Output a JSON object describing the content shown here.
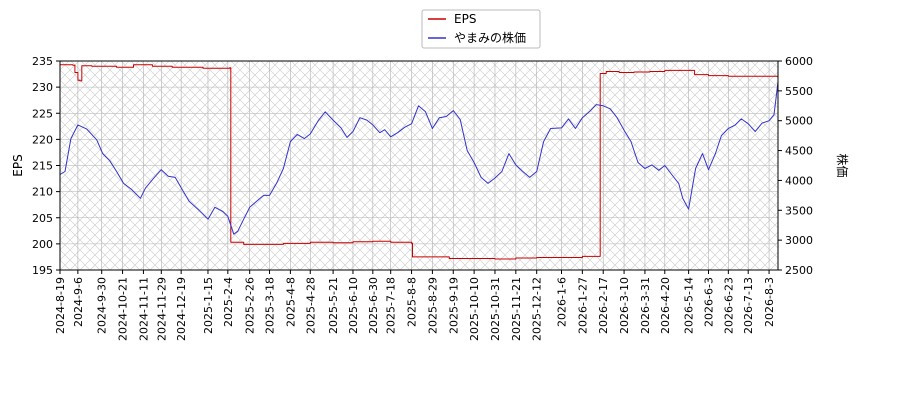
{
  "chart_data": {
    "type": "line",
    "title": "",
    "xlabel": "",
    "ylabel_left": "EPS",
    "ylabel_right": "株価",
    "ylim_left": [
      195,
      235
    ],
    "ylim_right": [
      2500,
      6000
    ],
    "xlim": [
      "2024-08-19",
      "2026-08-12"
    ],
    "yticks_left": [
      195,
      200,
      205,
      210,
      215,
      220,
      225,
      230,
      235
    ],
    "yticks_right": [
      2500,
      3000,
      3500,
      4000,
      4500,
      5000,
      5500,
      6000
    ],
    "x_ticks": [
      "2024-8-19",
      "2024-9-6",
      "2024-9-30",
      "2024-10-21",
      "2024-11-11",
      "2024-11-29",
      "2024-12-19",
      "2025-1-15",
      "2025-2-4",
      "2025-2-26",
      "2025-3-18",
      "2025-4-8",
      "2025-4-28",
      "2025-5-21",
      "2025-6-10",
      "2025-6-30",
      "2025-7-18",
      "2025-8-8",
      "2025-8-29",
      "2025-9-19",
      "2025-10-10",
      "2025-10-31",
      "2025-11-21",
      "2025-12-12",
      "2026-1-6",
      "2026-1-27",
      "2026-2-17",
      "2026-3-10",
      "2026-3-31",
      "2026-4-20",
      "2026-5-14",
      "2026-6-3",
      "2026-6-23",
      "2026-7-13",
      "2026-8-3"
    ],
    "legend_position": "top-center",
    "grid": true,
    "series": [
      {
        "name": "EPS",
        "axis": "left",
        "color": "#cc0000",
        "x": [
          "2024-08-19",
          "2024-09-01",
          "2024-09-03",
          "2024-09-06",
          "2024-09-08",
          "2024-09-10",
          "2024-09-20",
          "2024-10-15",
          "2024-11-01",
          "2024-11-20",
          "2024-12-10",
          "2025-01-10",
          "2025-01-25",
          "2025-02-06",
          "2025-02-07",
          "2025-02-20",
          "2025-03-10",
          "2025-04-01",
          "2025-04-28",
          "2025-05-21",
          "2025-06-10",
          "2025-06-30",
          "2025-07-18",
          "2025-08-08",
          "2025-08-09",
          "2025-08-29",
          "2025-09-15",
          "2025-10-10",
          "2025-10-31",
          "2025-11-21",
          "2025-12-12",
          "2026-01-06",
          "2026-01-27",
          "2026-02-13",
          "2026-02-14",
          "2026-02-20",
          "2026-03-05",
          "2026-03-20",
          "2026-04-05",
          "2026-04-20",
          "2026-05-14",
          "2026-05-20",
          "2026-06-03",
          "2026-06-23",
          "2026-07-13",
          "2026-08-03",
          "2026-08-12"
        ],
        "values": [
          234.3,
          234.2,
          232.8,
          231.3,
          231.2,
          234.1,
          234.0,
          233.8,
          234.3,
          234.0,
          233.8,
          233.6,
          233.6,
          233.7,
          200.3,
          199.9,
          199.9,
          200.1,
          200.3,
          200.2,
          200.4,
          200.5,
          200.3,
          200.1,
          197.5,
          197.5,
          197.2,
          197.2,
          197.1,
          197.3,
          197.4,
          197.4,
          197.6,
          197.6,
          232.6,
          233.0,
          232.8,
          232.9,
          233.0,
          233.2,
          233.2,
          232.4,
          232.2,
          232.1,
          232.1,
          232.1,
          232.1
        ]
      },
      {
        "name": "やまみの株価",
        "axis": "right",
        "color": "#3333cc",
        "x": [
          "2024-08-19",
          "2024-08-24",
          "2024-08-30",
          "2024-09-06",
          "2024-09-15",
          "2024-09-25",
          "2024-10-01",
          "2024-10-08",
          "2024-10-15",
          "2024-10-22",
          "2024-10-30",
          "2024-11-08",
          "2024-11-13",
          "2024-11-22",
          "2024-11-29",
          "2024-12-06",
          "2024-12-13",
          "2024-12-20",
          "2024-12-27",
          "2025-01-06",
          "2025-01-15",
          "2025-01-22",
          "2025-01-30",
          "2025-02-04",
          "2025-02-10",
          "2025-02-14",
          "2025-02-20",
          "2025-02-26",
          "2025-03-05",
          "2025-03-12",
          "2025-03-18",
          "2025-03-25",
          "2025-04-01",
          "2025-04-08",
          "2025-04-15",
          "2025-04-22",
          "2025-04-28",
          "2025-05-06",
          "2025-05-13",
          "2025-05-21",
          "2025-05-29",
          "2025-06-04",
          "2025-06-10",
          "2025-06-17",
          "2025-06-24",
          "2025-06-30",
          "2025-07-07",
          "2025-07-12",
          "2025-07-18",
          "2025-07-25",
          "2025-08-01",
          "2025-08-08",
          "2025-08-15",
          "2025-08-22",
          "2025-08-29",
          "2025-09-05",
          "2025-09-12",
          "2025-09-19",
          "2025-09-26",
          "2025-10-03",
          "2025-10-10",
          "2025-10-17",
          "2025-10-24",
          "2025-10-31",
          "2025-11-07",
          "2025-11-14",
          "2025-11-21",
          "2025-11-28",
          "2025-12-05",
          "2025-12-12",
          "2025-12-19",
          "2025-12-26",
          "2026-01-06",
          "2026-01-13",
          "2026-01-20",
          "2026-01-27",
          "2026-02-03",
          "2026-02-10",
          "2026-02-17",
          "2026-02-24",
          "2026-03-03",
          "2026-03-10",
          "2026-03-17",
          "2026-03-24",
          "2026-03-31",
          "2026-04-07",
          "2026-04-14",
          "2026-04-20",
          "2026-04-27",
          "2026-05-04",
          "2026-05-08",
          "2026-05-14",
          "2026-05-21",
          "2026-05-28",
          "2026-06-03",
          "2026-06-10",
          "2026-06-16",
          "2026-06-23",
          "2026-06-30",
          "2026-07-06",
          "2026-07-13",
          "2026-07-20",
          "2026-07-27",
          "2026-08-03",
          "2026-08-08",
          "2026-08-12"
        ],
        "values": [
          4100,
          4150,
          4700,
          4930,
          4860,
          4680,
          4450,
          4330,
          4150,
          3950,
          3850,
          3700,
          3870,
          4050,
          4180,
          4070,
          4050,
          3850,
          3650,
          3500,
          3350,
          3550,
          3480,
          3400,
          3100,
          3150,
          3350,
          3550,
          3650,
          3750,
          3750,
          3950,
          4200,
          4650,
          4770,
          4700,
          4780,
          5000,
          5150,
          5010,
          4880,
          4720,
          4820,
          5050,
          5010,
          4930,
          4800,
          4850,
          4730,
          4800,
          4890,
          4950,
          5250,
          5150,
          4870,
          5050,
          5070,
          5170,
          5020,
          4500,
          4300,
          4050,
          3950,
          4040,
          4150,
          4450,
          4260,
          4150,
          4050,
          4150,
          4650,
          4870,
          4880,
          5030,
          4870,
          5050,
          5150,
          5270,
          5250,
          5200,
          5050,
          4840,
          4650,
          4300,
          4200,
          4260,
          4170,
          4250,
          4100,
          3950,
          3700,
          3520,
          4200,
          4450,
          4180,
          4450,
          4750,
          4870,
          4930,
          5030,
          4950,
          4820,
          4960,
          5000,
          5100,
          5650
        ]
      }
    ]
  }
}
